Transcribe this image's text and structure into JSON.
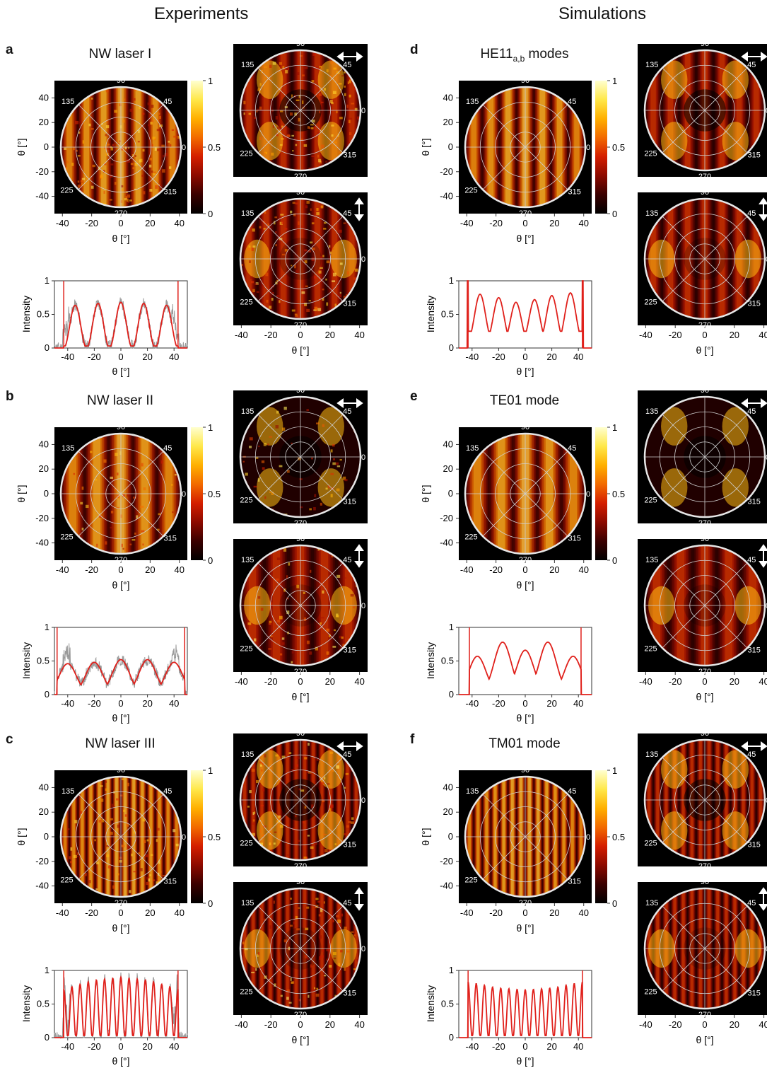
{
  "headers": {
    "experiments": "Experiments",
    "simulations": "Simulations"
  },
  "labels": {
    "theta": "θ [°]",
    "intensity": "Intensity",
    "arrow_horizontal": "horizontal-polarization-arrow-icon",
    "arrow_vertical": "vertical-polarization-arrow-icon"
  },
  "polar_ticks": [
    "90",
    "45",
    "0",
    "315",
    "270",
    "225",
    "135"
  ],
  "map_axis": {
    "x_ticks": [
      "-40",
      "-20",
      "0",
      "20",
      "40"
    ],
    "y_ticks": [
      "40",
      "20",
      "0",
      "-20",
      "-40"
    ],
    "range": [
      -45,
      45
    ]
  },
  "colorbar": {
    "ticks": [
      "1",
      "0.5",
      "0"
    ],
    "colors": [
      "#000000",
      "#3a0000",
      "#8c0a00",
      "#d41e00",
      "#f26a00",
      "#ffb000",
      "#ffe84a",
      "#ffffd0"
    ]
  },
  "profile_axis": {
    "y_ticks": [
      "1",
      "0.5",
      "0"
    ],
    "x_ticks": [
      "-40",
      "-20",
      "0",
      "20",
      "40"
    ]
  },
  "panels": [
    {
      "letter": "a",
      "title": "NW laser I",
      "title_sub": "",
      "title_tail": "",
      "column": "experiments"
    },
    {
      "letter": "b",
      "title": "NW laser II",
      "title_sub": "",
      "title_tail": "",
      "column": "experiments"
    },
    {
      "letter": "c",
      "title": "NW laser III",
      "title_sub": "",
      "title_tail": "",
      "column": "experiments"
    },
    {
      "letter": "d",
      "title": "HE11",
      "title_sub": "a,b",
      "title_tail": " modes",
      "column": "simulations"
    },
    {
      "letter": "e",
      "title": "TE01 mode",
      "title_sub": "",
      "title_tail": "",
      "column": "simulations"
    },
    {
      "letter": "f",
      "title": "TM01 mode",
      "title_sub": "",
      "title_tail": "",
      "column": "simulations"
    }
  ],
  "chart_data": [
    {
      "panel": "a",
      "type": "line",
      "xlabel": "θ [°]",
      "ylabel": "Intensity",
      "xlim": [
        -50,
        50
      ],
      "ylim": [
        0,
        1
      ],
      "fringes": 5,
      "envelope": [
        0.62,
        0.66,
        0.68,
        0.66,
        0.62
      ],
      "experimental_trace": true,
      "edges": [
        -43,
        43
      ]
    },
    {
      "panel": "b",
      "type": "line",
      "xlabel": "θ [°]",
      "ylabel": "Intensity",
      "xlim": [
        -50,
        50
      ],
      "ylim": [
        0,
        1
      ],
      "fringes": 5,
      "peaks_x": [
        -40,
        -20,
        0,
        20,
        40
      ],
      "peaks_y": [
        0.46,
        0.48,
        0.52,
        0.52,
        0.48
      ],
      "experimental_trace": true,
      "edges": [
        -48,
        48
      ]
    },
    {
      "panel": "c",
      "type": "line",
      "xlabel": "θ [°]",
      "ylabel": "Intensity",
      "xlim": [
        -50,
        50
      ],
      "ylim": [
        0,
        1
      ],
      "fringes": 14,
      "envelope": [
        0.72,
        0.85,
        0.9,
        0.85,
        0.72
      ],
      "experimental_trace": true,
      "edges": [
        -43,
        43
      ]
    },
    {
      "panel": "d",
      "type": "line",
      "xlabel": "θ [°]",
      "ylabel": "Intensity",
      "xlim": [
        -50,
        50
      ],
      "ylim": [
        0,
        1
      ],
      "peaks_x": [
        -34,
        -20,
        -7,
        7,
        20,
        34
      ],
      "peaks_y": [
        0.8,
        0.75,
        0.68,
        0.72,
        0.78,
        0.82
      ],
      "experimental_trace": false,
      "edges": [
        -43,
        43
      ]
    },
    {
      "panel": "e",
      "type": "line",
      "xlabel": "θ [°]",
      "ylabel": "Intensity",
      "xlim": [
        -50,
        50
      ],
      "ylim": [
        0,
        1
      ],
      "peaks_x": [
        -36,
        -17,
        0,
        17,
        36
      ],
      "peaks_y": [
        0.57,
        0.78,
        0.66,
        0.78,
        0.57
      ],
      "experimental_trace": false,
      "edges": [
        -42,
        42
      ]
    },
    {
      "panel": "f",
      "type": "line",
      "xlabel": "θ [°]",
      "ylabel": "Intensity",
      "xlim": [
        -50,
        50
      ],
      "ylim": [
        0,
        1
      ],
      "fringes": 14,
      "envelope": [
        0.83,
        0.74,
        0.71,
        0.74,
        0.83
      ],
      "experimental_trace": false,
      "edges": [
        -43,
        43
      ]
    }
  ],
  "maps": {
    "a": {
      "stripes": 7,
      "contrast": 0.35,
      "noise": 0.55
    },
    "b": {
      "stripes": 5,
      "contrast": 0.85,
      "noise": 0.2
    },
    "c": {
      "stripes": 14,
      "contrast": 0.7,
      "noise": 0.35
    },
    "d": {
      "stripes": 7,
      "contrast": 0.9,
      "noise": 0
    },
    "e": {
      "stripes": 5,
      "contrast": 0.95,
      "noise": 0
    },
    "f": {
      "stripes": 14,
      "contrast": 0.95,
      "noise": 0
    }
  },
  "pol_maps": {
    "a": {
      "h": {
        "stripes": 7,
        "lobes": 4,
        "noise": 0.5
      },
      "v": {
        "stripes": 7,
        "lobes": 2,
        "noise": 0.5
      }
    },
    "b": {
      "h": {
        "stripes": 0,
        "lobes": 4,
        "noise": 0.25
      },
      "v": {
        "stripes": 5,
        "lobes": 2,
        "noise": 0.25
      }
    },
    "c": {
      "h": {
        "stripes": 14,
        "lobes": 4,
        "noise": 0.35
      },
      "v": {
        "stripes": 14,
        "lobes": 2,
        "noise": 0.35
      }
    },
    "d": {
      "h": {
        "stripes": 7,
        "lobes": 4,
        "noise": 0
      },
      "v": {
        "stripes": 7,
        "lobes": 2,
        "noise": 0
      }
    },
    "e": {
      "h": {
        "stripes": 0,
        "lobes": 4,
        "noise": 0
      },
      "v": {
        "stripes": 5,
        "lobes": 2,
        "noise": 0
      }
    },
    "f": {
      "h": {
        "stripes": 14,
        "lobes": 4,
        "noise": 0
      },
      "v": {
        "stripes": 14,
        "lobes": 2,
        "noise": 0
      }
    }
  }
}
